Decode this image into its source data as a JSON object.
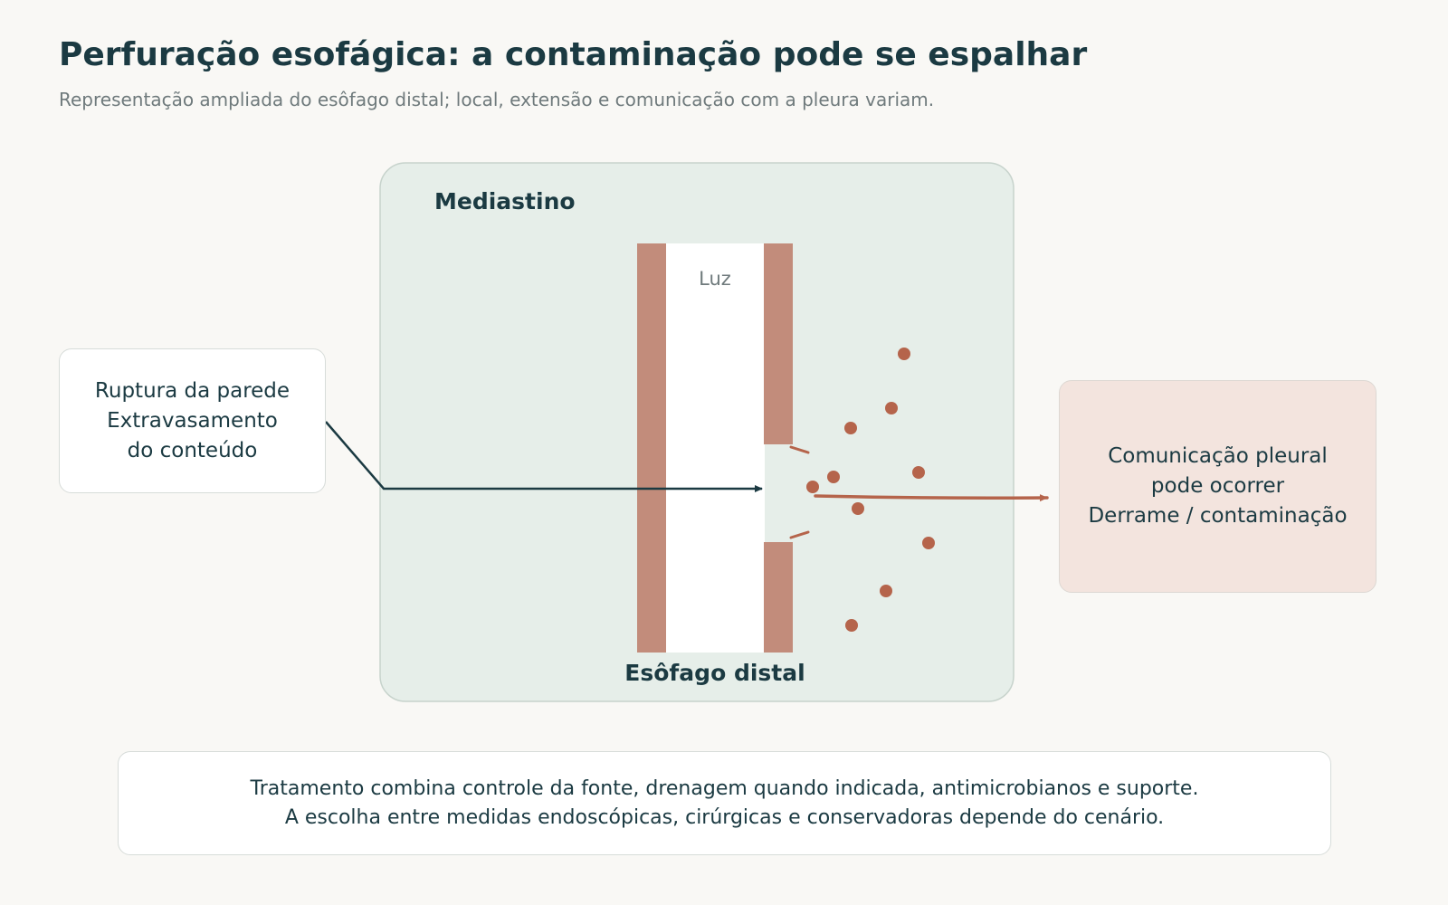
{
  "header": {
    "title": "Perfuração esofágica: a contaminação pode se espalhar",
    "subtitle": "Representação ampliada do esôfago distal; local, extensão e comunicação com a pleura variam."
  },
  "diagram": {
    "region_label": "Mediastino",
    "lumen_label": "Luz",
    "organ_label": "Esôfago distal"
  },
  "left_callout": {
    "lines": [
      "Ruptura da parede",
      "Extravasamento",
      "do conteúdo"
    ]
  },
  "right_callout": {
    "lines": [
      "Comunicação pleural",
      "pode ocorrer",
      "Derrame / contaminação"
    ]
  },
  "footer_note": {
    "lines": [
      "Tratamento combina controle da fonte, drenagem quando indicada, antimicrobianos e suporte.",
      "A escolha entre medidas endoscópicas, cirúrgicas e conservadoras depende do cenário."
    ]
  },
  "colors": {
    "mediastinum_fill": "#e6eee9",
    "wall": "#c28c7b",
    "leak": "#b5644b",
    "ink": "#1b3a42"
  }
}
